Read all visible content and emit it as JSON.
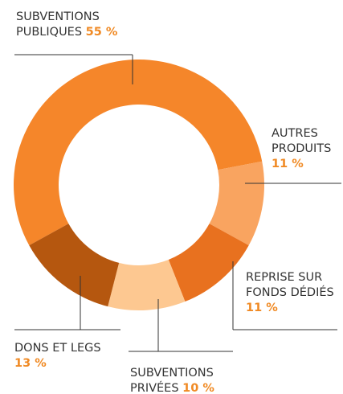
{
  "chart_data": {
    "type": "donut",
    "categories": [
      "SUBVENTIONS PUBLIQUES",
      "AUTRES PRODUITS",
      "REPRISE SUR FONDS DÉDIÉS",
      "SUBVENTIONS PRIVÉES",
      "DONS ET LEGS"
    ],
    "values": [
      55,
      11,
      11,
      10,
      13
    ],
    "value_labels": [
      "55 %",
      "11 %",
      "11 %",
      "10 %",
      "13 %"
    ],
    "colors": [
      "#f5862a",
      "#f9a460",
      "#e8711f",
      "#fdc891",
      "#b5570f"
    ],
    "label_color": "#f08a24"
  }
}
